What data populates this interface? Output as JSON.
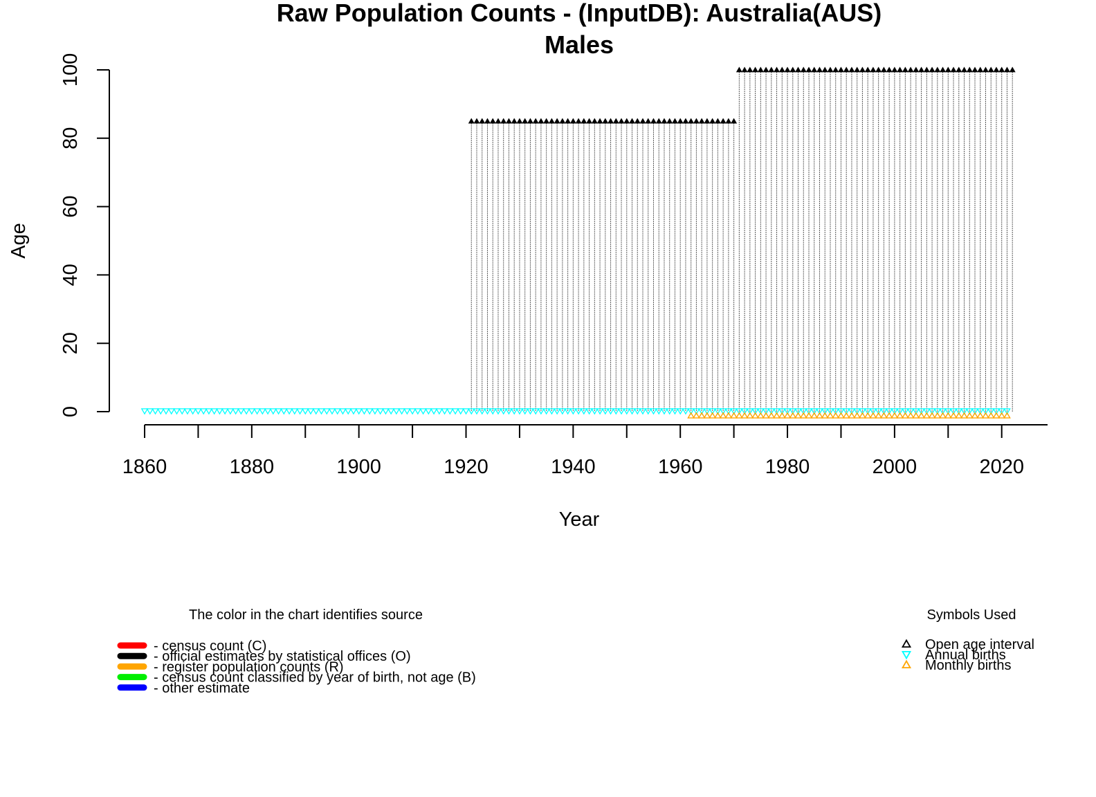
{
  "chart_data": {
    "type": "scatter",
    "title": "Raw Population Counts - (InputDB): Australia(AUS)",
    "subtitle": "Males",
    "xlabel": "Year",
    "ylabel": "Age",
    "xlim": [
      1860,
      2022
    ],
    "ylim": [
      0,
      100
    ],
    "x_ticks": [
      1860,
      1870,
      1880,
      1890,
      1900,
      1910,
      1920,
      1930,
      1940,
      1950,
      1960,
      1970,
      1980,
      1990,
      2000,
      2010,
      2020
    ],
    "x_tick_labels": [
      "1860",
      "1880",
      "1900",
      "1920",
      "1940",
      "1960",
      "1980",
      "2000",
      "2020"
    ],
    "y_ticks": [
      0,
      20,
      40,
      60,
      80,
      100
    ],
    "y_tick_labels": [
      "0",
      "20",
      "40",
      "60",
      "80",
      "100"
    ],
    "grid": false,
    "population_segments": [
      {
        "source": "official estimates by statistical offices (O)",
        "year_start": 1921,
        "year_end": 1970,
        "open_age": 85,
        "color": "#000000"
      },
      {
        "source": "official estimates by statistical offices (O)",
        "year_start": 1971,
        "year_end": 2022,
        "open_age": 100,
        "color": "#000000"
      }
    ],
    "annual_births": {
      "year_start": 1860,
      "year_end": 2021,
      "age": 0,
      "color": "#00ffff"
    },
    "monthly_births": {
      "year_start": 1962,
      "year_end": 2021,
      "age": -1,
      "color": "#ffa500"
    }
  },
  "legend_sources": {
    "title": "The color in the chart identifies source",
    "items": [
      {
        "label": "- census count (C)",
        "color": "#ff0000"
      },
      {
        "label": "- official estimates by statistical offices (O)",
        "color": "#000000"
      },
      {
        "label": "- register population counts (R)",
        "color": "#ffa500"
      },
      {
        "label": "- census count classified by year of birth, not age (B)",
        "color": "#00ee00"
      },
      {
        "label": "- other estimate",
        "color": "#0000ff"
      }
    ]
  },
  "legend_symbols": {
    "title": "Symbols Used",
    "items": [
      {
        "label": "Open age interval",
        "icon": "triangle-up-icon",
        "color": "#000000"
      },
      {
        "label": "Annual births",
        "icon": "triangle-down-icon",
        "color": "#00ffff"
      },
      {
        "label": "Monthly births",
        "icon": "triangle-up-icon",
        "color": "#ffa500"
      }
    ]
  }
}
